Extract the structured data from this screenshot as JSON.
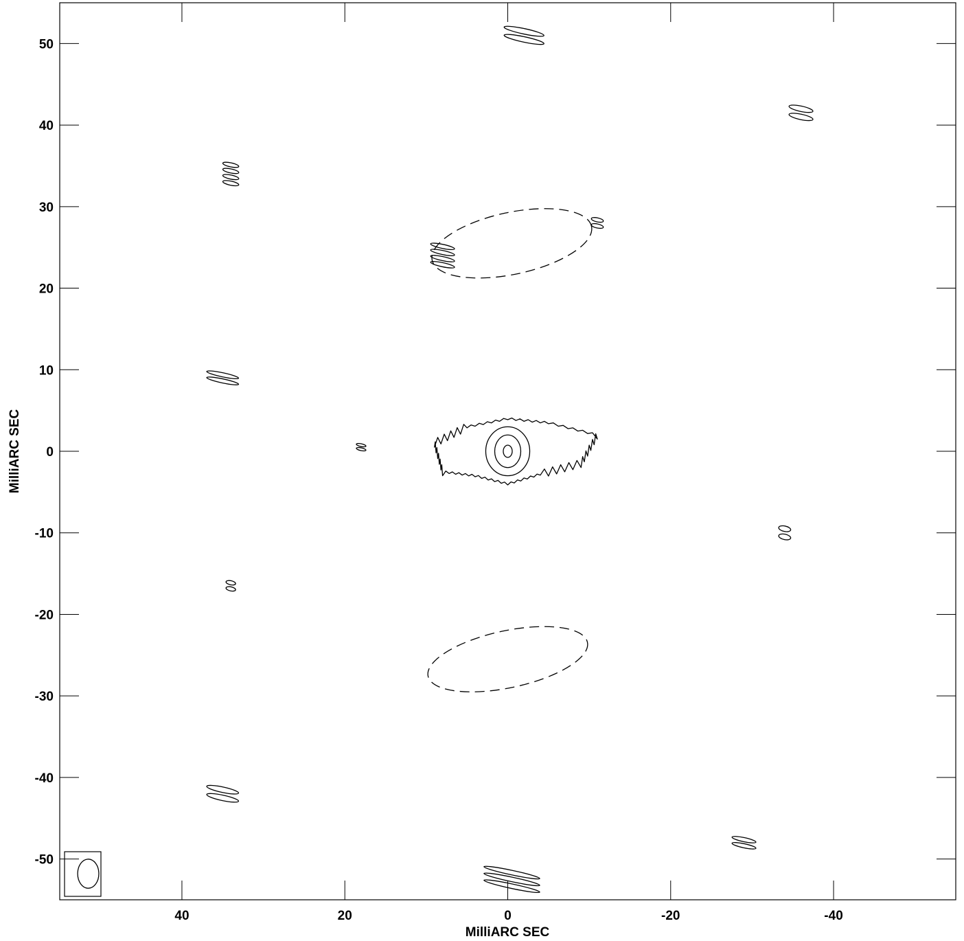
{
  "chart_data": {
    "type": "contour",
    "xlabel": "MilliARC SEC",
    "ylabel": "MilliARC SEC",
    "xlim": [
      55,
      -55
    ],
    "ylim": [
      -55,
      55
    ],
    "x_ticks": [
      40,
      20,
      0,
      -20,
      -40
    ],
    "x_tick_labels": [
      "40",
      "20",
      "0",
      "-20",
      "-40"
    ],
    "y_ticks": [
      50,
      40,
      30,
      20,
      10,
      0,
      -10,
      -20,
      -30,
      -40,
      -50
    ],
    "y_tick_labels": [
      "50",
      "40",
      "30",
      "20",
      "10",
      "0",
      "-10",
      "-20",
      "-30",
      "-40",
      "-50"
    ],
    "core": {
      "x": 0,
      "y": 0
    },
    "positive_contours": [
      {
        "center": [
          0,
          0
        ],
        "rx": 2.7,
        "ry": 3.0
      },
      {
        "center": [
          0,
          0
        ],
        "rx": 1.6,
        "ry": 2.0
      },
      {
        "center": [
          0,
          0
        ],
        "rx": 0.55,
        "ry": 0.75
      }
    ],
    "outer_contour": {
      "x": [
        9,
        5,
        0,
        -5,
        -11,
        -9,
        -4,
        0,
        4,
        8
      ],
      "y": [
        1,
        3,
        4,
        3.5,
        2,
        -1.5,
        -2.8,
        -4,
        -3,
        -2.5
      ]
    },
    "negative_contours": [
      {
        "center": [
          -0.5,
          25.5
        ],
        "rx": 10,
        "ry": 3.8
      },
      {
        "center": [
          0,
          -25.5
        ],
        "rx": 10,
        "ry": 3.5
      }
    ],
    "beam": {
      "center": [
        51.5,
        -51.8
      ],
      "major": 3.4,
      "minor": 2.6
    }
  }
}
